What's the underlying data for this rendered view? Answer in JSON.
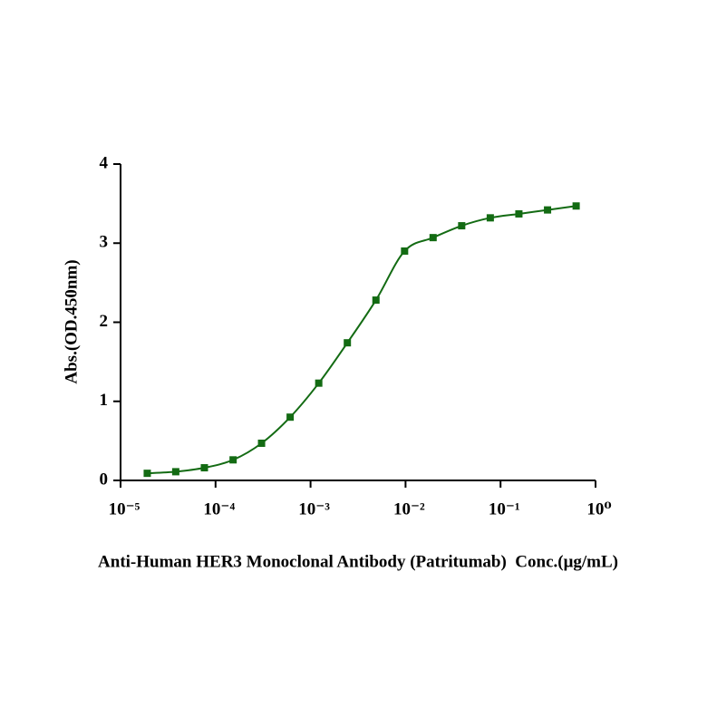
{
  "chart_data": {
    "type": "scatter",
    "x_label": "Anti-Human HER3 Monoclonal Antibody (Patritumab)  Conc.(μg/mL)",
    "y_label": "Abs.(OD.450nm)",
    "x_scale": "log",
    "fit_line": true,
    "series": [
      {
        "color": "#136b13",
        "x": [
          1.91e-05,
          3.81e-05,
          7.63e-05,
          0.000153,
          0.000305,
          0.00061,
          0.00122,
          0.00244,
          0.00488,
          0.00977,
          0.0195,
          0.039,
          0.078,
          0.156,
          0.3125,
          0.625
        ],
        "values": [
          0.09,
          0.11,
          0.16,
          0.26,
          0.47,
          0.8,
          1.23,
          1.74,
          2.28,
          2.9,
          3.07,
          3.22,
          3.32,
          3.37,
          3.42,
          3.47
        ]
      }
    ],
    "xlim": [
      1e-05,
      1
    ],
    "xticks": [
      {
        "value": 1e-05,
        "label": "10⁻⁵"
      },
      {
        "value": 0.0001,
        "label": "10⁻⁴"
      },
      {
        "value": 0.001,
        "label": "10⁻³"
      },
      {
        "value": 0.01,
        "label": "10⁻²"
      },
      {
        "value": 0.1,
        "label": "10⁻¹"
      },
      {
        "value": 1,
        "label": "10⁰"
      }
    ],
    "ylim": [
      0,
      4
    ],
    "yticks": [
      0,
      1,
      2,
      3,
      4
    ]
  }
}
